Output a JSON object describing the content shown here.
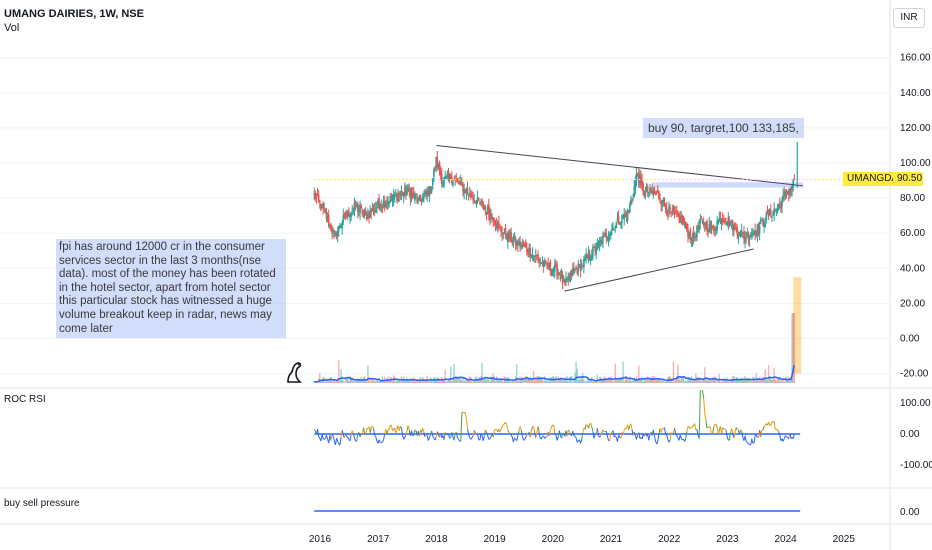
{
  "header": {
    "title": "UMANG DAIRIES, 1W, NSE",
    "vol_label": "Vol",
    "currency": "INR"
  },
  "price_axis": {
    "ticks": [
      "160.00",
      "140.00",
      "120.00",
      "100.00",
      "80.00",
      "60.00",
      "40.00",
      "20.00",
      "0.00",
      "-20.00"
    ]
  },
  "rsi_axis": {
    "ticks": [
      "100.00",
      "0.00",
      "-100.00"
    ]
  },
  "pressure_axis": {
    "ticks": [
      "0.00"
    ]
  },
  "time_axis": {
    "ticks": [
      "2016",
      "2017",
      "2018",
      "2019",
      "2020",
      "2021",
      "2022",
      "2023",
      "2024",
      "2025"
    ]
  },
  "last_price": {
    "ticker": "UMANGDAIRY",
    "value": "90.50"
  },
  "panes": {
    "rsi_label": "ROC RSI",
    "pressure_label": "buy sell pressure"
  },
  "annotations": {
    "callout": "buy 90, targret,100 133,185,",
    "note": "fpi has around 12000 cr in the consumer services sector in the last 3 months(nse data). most of the money has been rotated in the hotel sector, apart from hotel sector this particular stock has witnessed a huge volume breakout keep in radar, news may come later"
  },
  "colors": {
    "up": "#26a69a",
    "down": "#ef5350",
    "trendline": "#434651",
    "ma": "#2962ff",
    "rsi_up": "#43a047",
    "rsi_down": "#ff9800",
    "highlight": "#ffeb3b"
  },
  "chart_data": {
    "type": "candlestick",
    "interval": "1W",
    "price_range": [
      -25,
      170
    ],
    "anchors": [
      [
        2015.9,
        82
      ],
      [
        2016.1,
        70
      ],
      [
        2016.25,
        58
      ],
      [
        2016.4,
        68
      ],
      [
        2016.6,
        75
      ],
      [
        2016.8,
        70
      ],
      [
        2017.0,
        76
      ],
      [
        2017.25,
        80
      ],
      [
        2017.5,
        84
      ],
      [
        2017.7,
        78
      ],
      [
        2017.9,
        85
      ],
      [
        2018.0,
        102
      ],
      [
        2018.1,
        90
      ],
      [
        2018.25,
        92
      ],
      [
        2018.45,
        86
      ],
      [
        2018.7,
        78
      ],
      [
        2018.9,
        72
      ],
      [
        2019.1,
        62
      ],
      [
        2019.3,
        56
      ],
      [
        2019.6,
        50
      ],
      [
        2019.85,
        42
      ],
      [
        2020.1,
        38
      ],
      [
        2020.2,
        30
      ],
      [
        2020.35,
        38
      ],
      [
        2020.5,
        42
      ],
      [
        2020.7,
        50
      ],
      [
        2020.9,
        58
      ],
      [
        2021.1,
        66
      ],
      [
        2021.3,
        72
      ],
      [
        2021.45,
        94
      ],
      [
        2021.55,
        84
      ],
      [
        2021.8,
        82
      ],
      [
        2022.0,
        72
      ],
      [
        2022.2,
        68
      ],
      [
        2022.4,
        56
      ],
      [
        2022.55,
        66
      ],
      [
        2022.75,
        62
      ],
      [
        2022.9,
        70
      ],
      [
        2023.1,
        64
      ],
      [
        2023.3,
        58
      ],
      [
        2023.5,
        62
      ],
      [
        2023.7,
        70
      ],
      [
        2023.9,
        76
      ],
      [
        2024.0,
        82
      ],
      [
        2024.1,
        86
      ],
      [
        2024.15,
        90.5
      ]
    ],
    "trendlines": [
      {
        "from": [
          2018.0,
          110
        ],
        "to": [
          2024.3,
          87
        ]
      },
      {
        "from": [
          2020.2,
          27
        ],
        "to": [
          2023.45,
          51
        ]
      }
    ],
    "resistance_zone": {
      "from_x": 2021.7,
      "to_x": 2024.3,
      "y": [
        86,
        89
      ]
    },
    "volume_spike": {
      "x": 2024.2,
      "ymin": -20,
      "ymax": 35
    }
  }
}
